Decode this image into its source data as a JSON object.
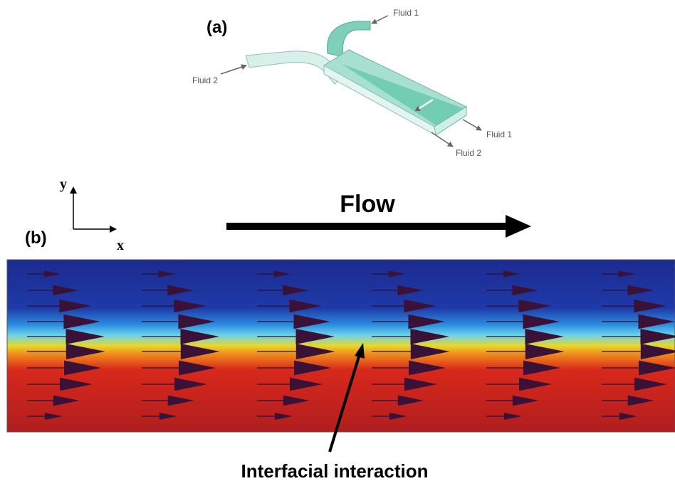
{
  "panel_a": {
    "label": "(a)",
    "inlet_top": "Fluid 1",
    "inlet_left": "Fluid 2",
    "outlet_right": "Fluid 1",
    "outlet_bottom": "Fluid 2"
  },
  "panel_b": {
    "label": "(b)",
    "axis_y": "y",
    "axis_x": "x",
    "flow_label": "Flow",
    "annotation": "Interfacial interaction"
  }
}
